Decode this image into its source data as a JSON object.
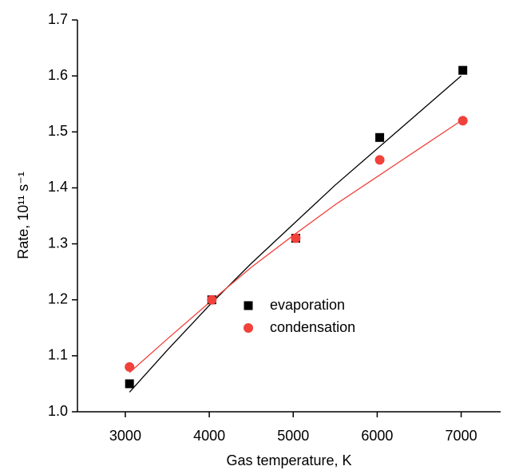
{
  "chart_data": {
    "type": "scatter",
    "x_label": "Gas temperature, K",
    "y_label": "Rate, 10¹¹ s⁻¹",
    "xlim": [
      2430,
      7470
    ],
    "ylim": [
      1.0,
      1.7
    ],
    "xticks": [
      3000,
      4000,
      5000,
      6000,
      7000
    ],
    "yticks": [
      {
        "value": 1.0,
        "label": "1.0"
      },
      1.1,
      1.2,
      1.3,
      1.4,
      1.5,
      1.6,
      1.7
    ],
    "series": [
      {
        "name": "evaporation",
        "color": "#000000",
        "marker": "square",
        "x": [
          3050,
          4030,
          5030,
          6030,
          7020
        ],
        "values": [
          1.05,
          1.2,
          1.31,
          1.49,
          1.61
        ]
      },
      {
        "name": "condensation",
        "color": "#f0413a",
        "marker": "circle",
        "x": [
          3050,
          4030,
          5030,
          6030,
          7020
        ],
        "values": [
          1.08,
          1.2,
          1.31,
          1.45,
          1.52
        ]
      }
    ],
    "fit_lines": [
      {
        "color": "#000000",
        "x": [
          3050,
          3500,
          4000,
          4500,
          5000,
          5500,
          6000,
          6500,
          7000
        ],
        "values": [
          1.035,
          1.11,
          1.19,
          1.265,
          1.335,
          1.405,
          1.47,
          1.535,
          1.6
        ]
      },
      {
        "color": "#f0413a",
        "x": [
          3050,
          3500,
          4000,
          4500,
          5000,
          5500,
          6000,
          6500,
          7000
        ],
        "values": [
          1.07,
          1.13,
          1.195,
          1.258,
          1.315,
          1.37,
          1.42,
          1.47,
          1.52
        ]
      }
    ]
  }
}
